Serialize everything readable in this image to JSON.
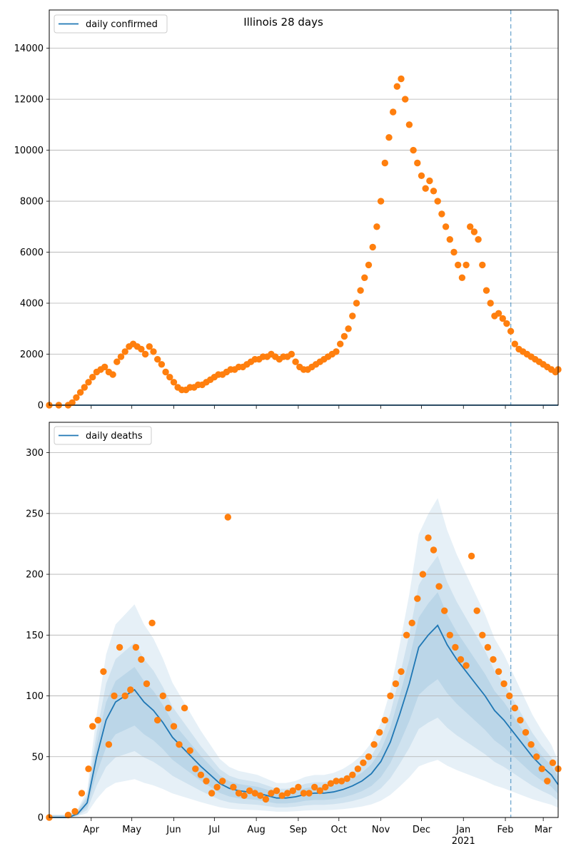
{
  "chart_data": [
    {
      "type": "scatter",
      "title": "Illinois 28 days",
      "xlabel": "",
      "ylabel": "",
      "xlim": [
        "2020-03-01",
        "2021-03-12"
      ],
      "ylim": [
        0,
        15500
      ],
      "y_ticks": [
        0,
        2000,
        4000,
        6000,
        8000,
        10000,
        12000,
        14000
      ],
      "grid": "horizontal",
      "legend_position": "top-left",
      "legend": [
        {
          "label": "daily confirmed",
          "color": "#1f77b4"
        }
      ],
      "vertical_marker": "2021-02-05",
      "series": [
        {
          "name": "daily confirmed",
          "style": "line",
          "color": "#1f77b4",
          "x": [
            "2020-03-01",
            "2021-03-12"
          ],
          "y": [
            0,
            0
          ]
        },
        {
          "style": "points",
          "color": "#ff7f0e",
          "x": [
            "2020-03-01",
            "2020-03-08",
            "2020-03-15",
            "2020-03-18",
            "2020-03-21",
            "2020-03-24",
            "2020-03-27",
            "2020-03-30",
            "2020-04-02",
            "2020-04-05",
            "2020-04-08",
            "2020-04-11",
            "2020-04-14",
            "2020-04-17",
            "2020-04-20",
            "2020-04-23",
            "2020-04-26",
            "2020-04-29",
            "2020-05-02",
            "2020-05-05",
            "2020-05-08",
            "2020-05-11",
            "2020-05-14",
            "2020-05-17",
            "2020-05-20",
            "2020-05-23",
            "2020-05-26",
            "2020-05-29",
            "2020-06-01",
            "2020-06-04",
            "2020-06-07",
            "2020-06-10",
            "2020-06-13",
            "2020-06-16",
            "2020-06-19",
            "2020-06-22",
            "2020-06-25",
            "2020-06-28",
            "2020-07-01",
            "2020-07-04",
            "2020-07-07",
            "2020-07-10",
            "2020-07-13",
            "2020-07-16",
            "2020-07-19",
            "2020-07-22",
            "2020-07-25",
            "2020-07-28",
            "2020-07-31",
            "2020-08-03",
            "2020-08-06",
            "2020-08-09",
            "2020-08-12",
            "2020-08-15",
            "2020-08-18",
            "2020-08-21",
            "2020-08-24",
            "2020-08-27",
            "2020-08-30",
            "2020-09-02",
            "2020-09-05",
            "2020-09-08",
            "2020-09-11",
            "2020-09-14",
            "2020-09-17",
            "2020-09-20",
            "2020-09-23",
            "2020-09-26",
            "2020-09-29",
            "2020-10-02",
            "2020-10-05",
            "2020-10-08",
            "2020-10-11",
            "2020-10-14",
            "2020-10-17",
            "2020-10-20",
            "2020-10-23",
            "2020-10-26",
            "2020-10-29",
            "2020-11-01",
            "2020-11-04",
            "2020-11-07",
            "2020-11-10",
            "2020-11-13",
            "2020-11-16",
            "2020-11-19",
            "2020-11-22",
            "2020-11-25",
            "2020-11-28",
            "2020-12-01",
            "2020-12-04",
            "2020-12-07",
            "2020-12-10",
            "2020-12-13",
            "2020-12-16",
            "2020-12-19",
            "2020-12-22",
            "2020-12-25",
            "2020-12-28",
            "2020-12-31",
            "2021-01-03",
            "2021-01-06",
            "2021-01-09",
            "2021-01-12",
            "2021-01-15",
            "2021-01-18",
            "2021-01-21",
            "2021-01-24",
            "2021-01-27",
            "2021-01-30",
            "2021-02-02",
            "2021-02-05",
            "2021-02-08",
            "2021-02-11",
            "2021-02-14",
            "2021-02-17",
            "2021-02-20",
            "2021-02-23",
            "2021-02-26",
            "2021-03-01",
            "2021-03-04",
            "2021-03-07",
            "2021-03-10",
            "2021-03-12"
          ],
          "y": [
            0,
            0,
            0,
            100,
            300,
            500,
            700,
            900,
            1100,
            1300,
            1400,
            1500,
            1300,
            1200,
            1700,
            1900,
            2100,
            2300,
            2400,
            2300,
            2200,
            2000,
            2300,
            2100,
            1800,
            1600,
            1300,
            1100,
            900,
            700,
            600,
            600,
            700,
            700,
            800,
            800,
            900,
            1000,
            1100,
            1200,
            1200,
            1300,
            1400,
            1400,
            1500,
            1500,
            1600,
            1700,
            1800,
            1800,
            1900,
            1900,
            2000,
            1900,
            1800,
            1900,
            1900,
            2000,
            1700,
            1500,
            1400,
            1400,
            1500,
            1600,
            1700,
            1800,
            1900,
            2000,
            2100,
            2400,
            2700,
            3000,
            3500,
            4000,
            4500,
            5000,
            5500,
            6200,
            7000,
            8000,
            9500,
            10500,
            11500,
            12500,
            12800,
            12000,
            11000,
            10000,
            9500,
            9000,
            8500,
            8800,
            8400,
            8000,
            7500,
            7000,
            6500,
            6000,
            5500,
            5000,
            5500,
            7000,
            6800,
            6500,
            5500,
            4500,
            4000,
            3500,
            3600,
            3400,
            3200,
            2900,
            2400,
            2200,
            2100,
            2000,
            1900,
            1800,
            1700,
            1600,
            1500,
            1400,
            1300,
            1400
          ]
        }
      ]
    },
    {
      "type": "scatter",
      "title": "",
      "xlabel": "",
      "ylabel": "",
      "xlim": [
        "2020-03-01",
        "2021-03-12"
      ],
      "ylim": [
        0,
        325
      ],
      "y_ticks": [
        0,
        50,
        100,
        150,
        200,
        250,
        300
      ],
      "x_tick_labels": [
        "Apr",
        "May",
        "Jun",
        "Jul",
        "Aug",
        "Sep",
        "Oct",
        "Nov",
        "Dec",
        "Jan\n2021",
        "Feb",
        "Mar"
      ],
      "grid": "horizontal",
      "legend_position": "top-left",
      "legend": [
        {
          "label": "daily deaths",
          "color": "#1f77b4"
        }
      ],
      "vertical_marker": "2021-02-05",
      "bands": "credible intervals",
      "series": [
        {
          "name": "daily deaths",
          "style": "line",
          "color": "#1f77b4",
          "x": [
            "2020-03-01",
            "2020-03-15",
            "2020-03-22",
            "2020-03-29",
            "2020-04-05",
            "2020-04-12",
            "2020-04-19",
            "2020-04-26",
            "2020-05-03",
            "2020-05-10",
            "2020-05-17",
            "2020-05-24",
            "2020-05-31",
            "2020-06-07",
            "2020-06-14",
            "2020-06-21",
            "2020-06-28",
            "2020-07-05",
            "2020-07-12",
            "2020-07-19",
            "2020-07-26",
            "2020-08-02",
            "2020-08-09",
            "2020-08-16",
            "2020-08-23",
            "2020-08-30",
            "2020-09-06",
            "2020-09-13",
            "2020-09-20",
            "2020-09-27",
            "2020-10-04",
            "2020-10-11",
            "2020-10-18",
            "2020-10-25",
            "2020-11-01",
            "2020-11-08",
            "2020-11-15",
            "2020-11-22",
            "2020-11-29",
            "2020-12-06",
            "2020-12-13",
            "2020-12-20",
            "2020-12-27",
            "2021-01-03",
            "2021-01-10",
            "2021-01-17",
            "2021-01-24",
            "2021-01-31",
            "2021-02-07",
            "2021-02-14",
            "2021-02-21",
            "2021-02-28",
            "2021-03-07",
            "2021-03-12"
          ],
          "y": [
            0,
            0,
            3,
            12,
            50,
            80,
            95,
            100,
            105,
            95,
            88,
            78,
            66,
            58,
            50,
            42,
            35,
            28,
            24,
            22,
            21,
            20,
            18,
            16,
            16,
            17,
            19,
            20,
            20,
            21,
            23,
            26,
            30,
            36,
            46,
            62,
            85,
            110,
            140,
            150,
            158,
            142,
            130,
            120,
            110,
            100,
            88,
            80,
            70,
            60,
            50,
            42,
            35,
            27
          ]
        },
        {
          "style": "points",
          "color": "#ff7f0e",
          "x": [
            "2020-03-01",
            "2020-03-15",
            "2020-03-20",
            "2020-03-25",
            "2020-03-30",
            "2020-04-02",
            "2020-04-06",
            "2020-04-10",
            "2020-04-14",
            "2020-04-18",
            "2020-04-22",
            "2020-04-26",
            "2020-04-30",
            "2020-05-04",
            "2020-05-08",
            "2020-05-12",
            "2020-05-16",
            "2020-05-20",
            "2020-05-24",
            "2020-05-28",
            "2020-06-01",
            "2020-06-05",
            "2020-06-09",
            "2020-06-13",
            "2020-06-17",
            "2020-06-21",
            "2020-06-25",
            "2020-06-29",
            "2020-07-03",
            "2020-07-07",
            "2020-07-11",
            "2020-07-15",
            "2020-07-19",
            "2020-07-23",
            "2020-07-27",
            "2020-07-31",
            "2020-08-04",
            "2020-08-08",
            "2020-08-12",
            "2020-08-16",
            "2020-08-20",
            "2020-08-24",
            "2020-08-28",
            "2020-09-01",
            "2020-09-05",
            "2020-09-09",
            "2020-09-13",
            "2020-09-17",
            "2020-09-21",
            "2020-09-25",
            "2020-09-29",
            "2020-10-03",
            "2020-10-07",
            "2020-10-11",
            "2020-10-15",
            "2020-10-19",
            "2020-10-23",
            "2020-10-27",
            "2020-10-31",
            "2020-11-04",
            "2020-11-08",
            "2020-11-12",
            "2020-11-16",
            "2020-11-20",
            "2020-11-24",
            "2020-11-28",
            "2020-12-02",
            "2020-12-06",
            "2020-12-10",
            "2020-12-14",
            "2020-12-18",
            "2020-12-22",
            "2020-12-26",
            "2020-12-30",
            "2021-01-03",
            "2021-01-07",
            "2021-01-11",
            "2021-01-15",
            "2021-01-19",
            "2021-01-23",
            "2021-01-27",
            "2021-01-31",
            "2021-02-04",
            "2021-02-08",
            "2021-02-12",
            "2021-02-16",
            "2021-02-20",
            "2021-02-24",
            "2021-02-28",
            "2021-03-04",
            "2021-03-08",
            "2021-03-12"
          ],
          "y": [
            0,
            2,
            5,
            20,
            40,
            75,
            80,
            120,
            60,
            100,
            140,
            100,
            105,
            140,
            130,
            110,
            160,
            80,
            100,
            90,
            75,
            60,
            90,
            55,
            40,
            35,
            30,
            20,
            25,
            30,
            247,
            25,
            20,
            18,
            22,
            20,
            18,
            15,
            20,
            22,
            18,
            20,
            22,
            25,
            20,
            20,
            25,
            22,
            25,
            28,
            30,
            30,
            32,
            35,
            40,
            45,
            50,
            60,
            70,
            80,
            100,
            110,
            120,
            150,
            160,
            180,
            200,
            230,
            220,
            190,
            170,
            150,
            140,
            130,
            125,
            215,
            170,
            150,
            140,
            130,
            120,
            110,
            100,
            90,
            80,
            70,
            60,
            50,
            40,
            30,
            45,
            40
          ]
        }
      ]
    }
  ]
}
